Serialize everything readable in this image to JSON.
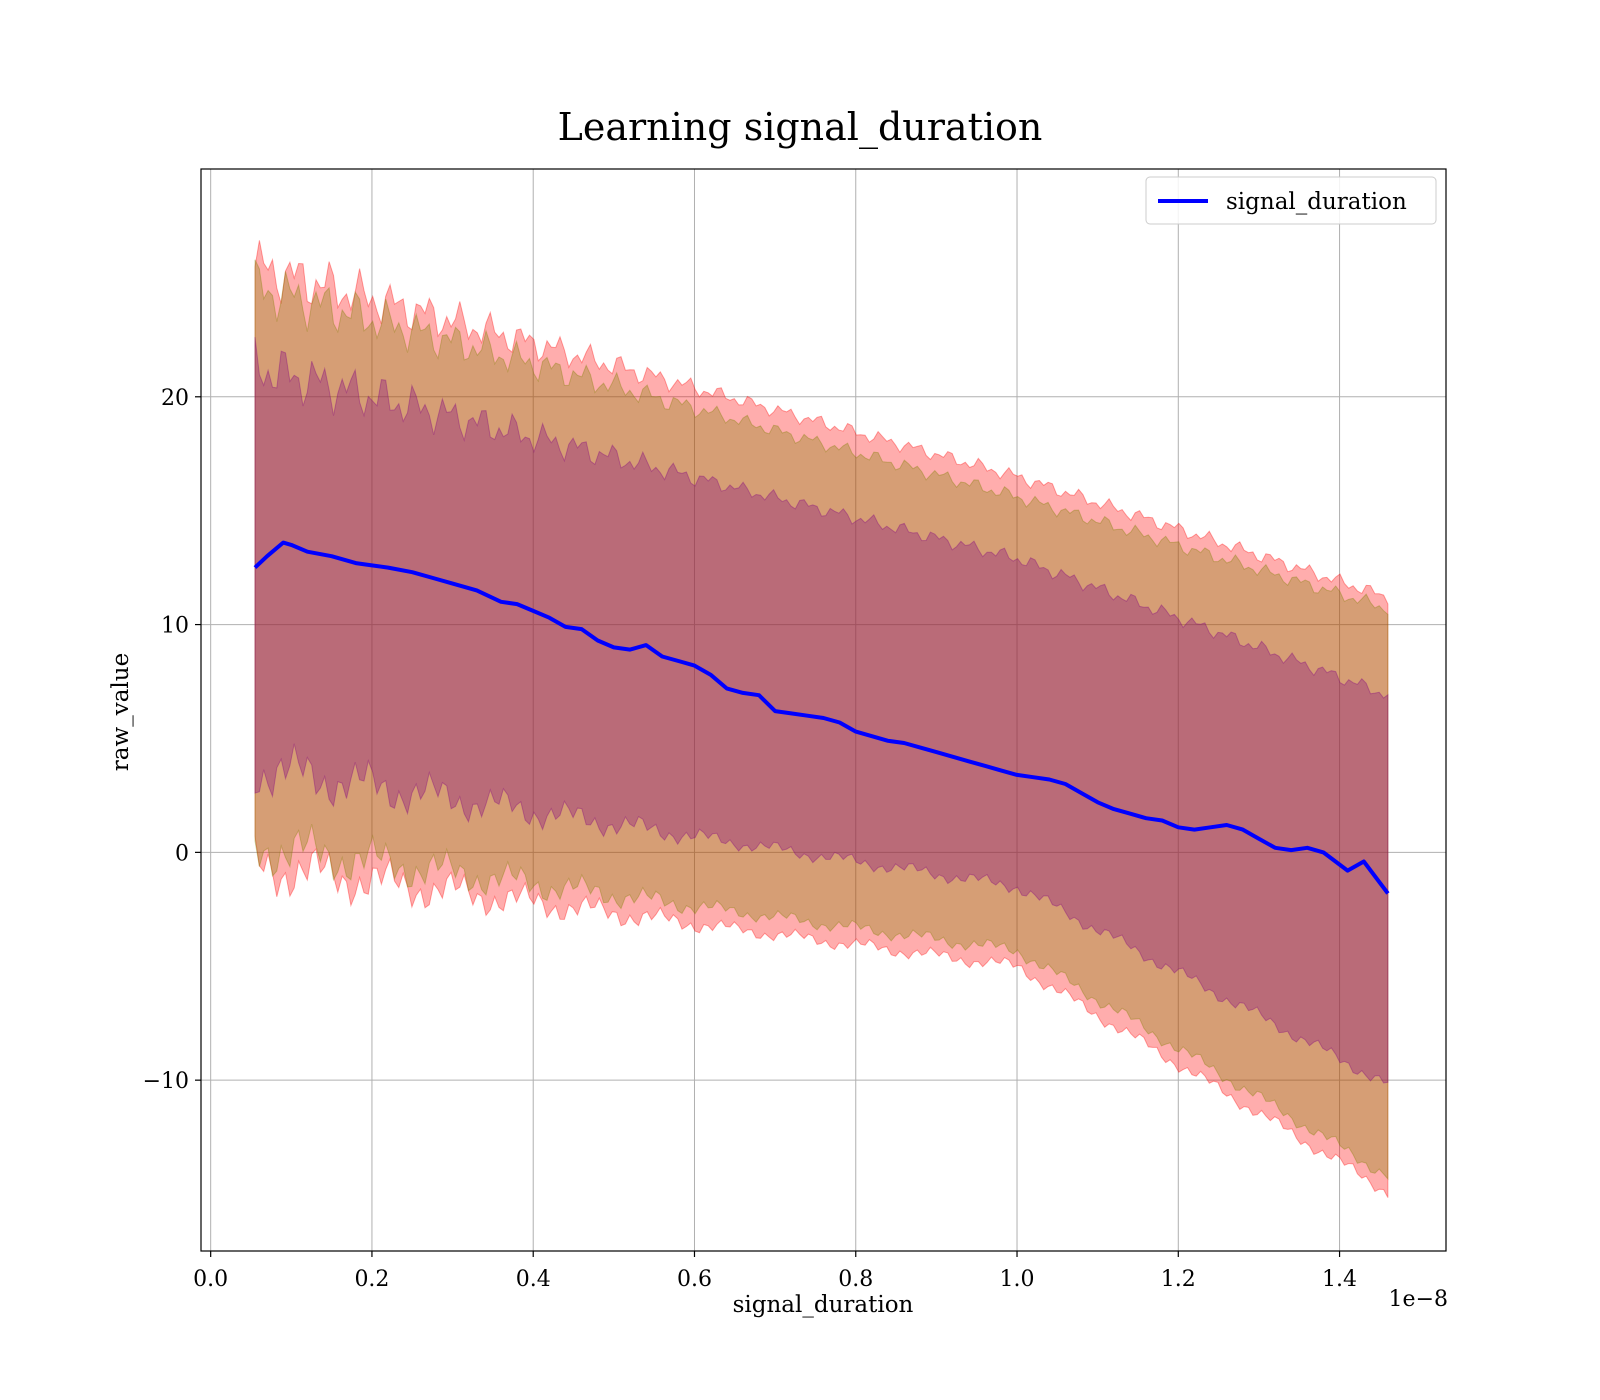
{
  "chart_data": {
    "type": "area",
    "title": "Learning signal_duration",
    "xlabel": "signal_duration",
    "ylabel": "raw_value",
    "x_offset_text": "1e−8",
    "x_tick_labels": [
      "0.0",
      "0.2",
      "0.4",
      "0.6",
      "0.8",
      "1.0",
      "1.2",
      "1.4"
    ],
    "x_ticks": [
      0.0,
      0.2,
      0.4,
      0.6,
      0.8,
      1.0,
      1.2,
      1.4
    ],
    "y_tick_labels": [
      "−10",
      "0",
      "10",
      "20"
    ],
    "y_ticks": [
      -10,
      0,
      10,
      20
    ],
    "xlim": [
      -0.012,
      1.532
    ],
    "ylim": [
      -17.5,
      30
    ],
    "grid": true,
    "legend": {
      "position": "top-right",
      "entries": [
        "signal_duration"
      ]
    },
    "series": [
      {
        "name": "signal_duration",
        "color": "#0000ff",
        "x": [
          0.055,
          0.07,
          0.09,
          0.1,
          0.12,
          0.15,
          0.18,
          0.2,
          0.22,
          0.25,
          0.28,
          0.3,
          0.33,
          0.36,
          0.38,
          0.4,
          0.42,
          0.44,
          0.46,
          0.48,
          0.5,
          0.52,
          0.54,
          0.56,
          0.58,
          0.6,
          0.62,
          0.64,
          0.66,
          0.68,
          0.7,
          0.72,
          0.74,
          0.76,
          0.78,
          0.8,
          0.82,
          0.84,
          0.86,
          0.88,
          0.9,
          0.92,
          0.94,
          0.96,
          0.98,
          1.0,
          1.02,
          1.04,
          1.06,
          1.08,
          1.1,
          1.12,
          1.14,
          1.16,
          1.18,
          1.2,
          1.22,
          1.24,
          1.26,
          1.28,
          1.3,
          1.32,
          1.34,
          1.36,
          1.38,
          1.41,
          1.43,
          1.46
        ],
        "values": [
          12.5,
          13.0,
          13.6,
          13.5,
          13.2,
          13.0,
          12.7,
          12.6,
          12.5,
          12.3,
          12.0,
          11.8,
          11.5,
          11.0,
          10.9,
          10.6,
          10.3,
          9.9,
          9.8,
          9.3,
          9.0,
          8.9,
          9.1,
          8.6,
          8.4,
          8.2,
          7.8,
          7.2,
          7.0,
          6.9,
          6.2,
          6.1,
          6.0,
          5.9,
          5.7,
          5.3,
          5.1,
          4.9,
          4.8,
          4.6,
          4.4,
          4.2,
          4.0,
          3.8,
          3.6,
          3.4,
          3.3,
          3.2,
          3.0,
          2.6,
          2.2,
          1.9,
          1.7,
          1.5,
          1.4,
          1.1,
          1.0,
          1.1,
          1.2,
          1.0,
          0.6,
          0.2,
          0.1,
          0.2,
          0.0,
          -0.8,
          -0.4,
          -1.8
        ]
      }
    ],
    "bands": [
      {
        "color": "#ff0000",
        "opacity": 0.32,
        "lower": [
          -0.6,
          -5.0,
          -14.9
        ],
        "upper": [
          25.7,
          16.5,
          11.2
        ]
      },
      {
        "color": "#808000",
        "opacity": 0.32,
        "lower": [
          0.3,
          -4.3,
          -14.2
        ],
        "upper": [
          24.8,
          15.6,
          10.7
        ]
      },
      {
        "color": "#800080",
        "opacity": 0.32,
        "lower": [
          3.7,
          -1.5,
          -10.2
        ],
        "upper": [
          21.3,
          12.9,
          6.9
        ]
      }
    ],
    "band_x": [
      0.055,
      1.0,
      1.46
    ]
  }
}
